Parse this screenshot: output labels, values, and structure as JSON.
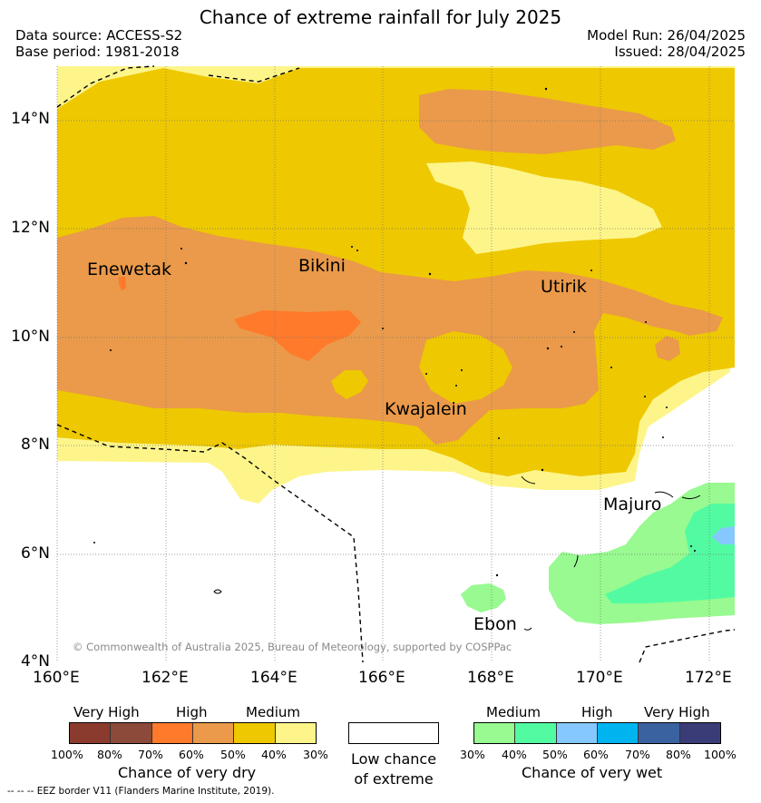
{
  "title": "Chance of extreme rainfall for July 2025",
  "data_source": "Data source: ACCESS-S2",
  "base_period": "Base period: 1981-2018",
  "model_run": "Model Run: 26/04/2025",
  "issued": "Issued: 28/04/2025",
  "copyright": "© Commonwealth of Australia 2025, Bureau of Meteorology, supported by COSPPac",
  "places": [
    "Enewetak",
    "Bikini",
    "Utirik",
    "Kwajalein",
    "Majuro",
    "Ebon"
  ],
  "lat_ticks": [
    "14°N",
    "12°N",
    "10°N",
    "8°N",
    "6°N",
    "4°N"
  ],
  "lon_ticks": [
    "160°E",
    "162°E",
    "164°E",
    "166°E",
    "168°E",
    "170°E",
    "172°E"
  ],
  "dry_legend": {
    "categories": [
      "Very High",
      "High",
      "Medium"
    ],
    "colors": [
      "#8b3a2e",
      "#8b4a3a",
      "#ff7a2a",
      "#ea9a4a",
      "#eec800",
      "#fdf58a"
    ],
    "ticks": [
      "100%",
      "80%",
      "70%",
      "60%",
      "50%",
      "40%",
      "30%"
    ],
    "caption": "Chance of very dry"
  },
  "low_legend": {
    "line1": "Low chance",
    "line2": "of extreme"
  },
  "wet_legend": {
    "categories": [
      "Medium",
      "High",
      "Very High"
    ],
    "colors": [
      "#98fa90",
      "#52fba2",
      "#85c8ff",
      "#00b4f0",
      "#3a62a0",
      "#3a3c78"
    ],
    "ticks": [
      "30%",
      "40%",
      "50%",
      "60%",
      "70%",
      "80%",
      "100%"
    ],
    "caption": "Chance of very wet"
  },
  "footnote": "-- -- -- EEZ border V11 (Flanders Marine Institute, 2019)."
}
